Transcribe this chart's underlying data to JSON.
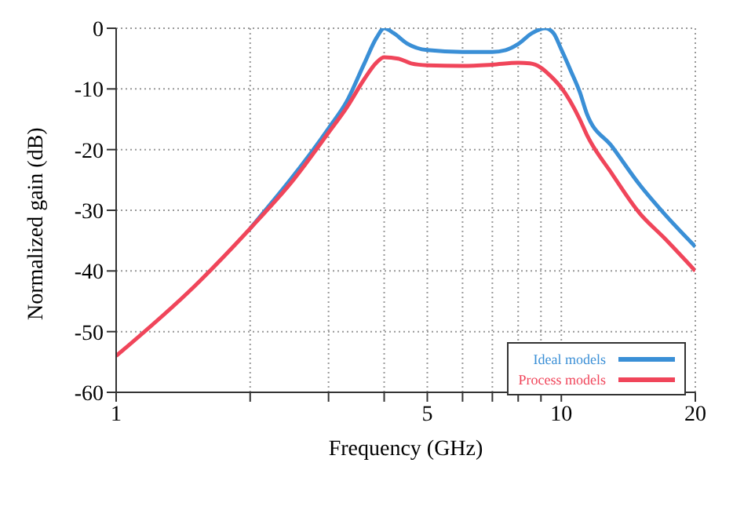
{
  "chart_data": {
    "type": "line",
    "xlabel": "Frequency (GHz)",
    "ylabel": "Normalized gain (dB)",
    "log": "x",
    "xlim": [
      1,
      20
    ],
    "ylim": [
      -60,
      0
    ],
    "xticks": [
      1,
      {
        "value": 2,
        "label": null
      },
      {
        "value": 3,
        "label": null
      },
      {
        "value": 4,
        "label": null
      },
      5,
      {
        "value": 6,
        "label": null
      },
      {
        "value": 7,
        "label": null
      },
      {
        "value": 8,
        "label": null
      },
      {
        "value": 9,
        "label": null
      },
      10,
      20
    ],
    "yticks": [
      -60,
      -50,
      -40,
      -30,
      -20,
      -10,
      0
    ],
    "grid": true,
    "legend": "bottom right",
    "marker": "none",
    "line_style": "solid",
    "series": [
      {
        "name": "Ideal models",
        "color": "#3a8fd6",
        "x": [
          2,
          3,
          3.3,
          3.6,
          3.85,
          4,
          4.2,
          4.5,
          5,
          6,
          7,
          7.5,
          8,
          8.6,
          9.2,
          9.6,
          10,
          10.5,
          11,
          11.4,
          13,
          15,
          17,
          20
        ],
        "values": [
          -33,
          -16.5,
          -12,
          -6,
          -1.5,
          0,
          -0.8,
          -2.5,
          -3.6,
          -3.9,
          -3.9,
          -3.6,
          -2.6,
          -0.8,
          0,
          -0.8,
          -3.5,
          -7,
          -10.5,
          -14,
          -19.5,
          -25.8,
          -30.5,
          -36
        ]
      },
      {
        "name": "Process models",
        "color": "#f0455a",
        "x": [
          1,
          1.5,
          2,
          2.5,
          3,
          3.3,
          3.6,
          3.85,
          4,
          4.3,
          4.6,
          5,
          6,
          7,
          8,
          8.5,
          9,
          9.5,
          10,
          11,
          11.4,
          13,
          15,
          17,
          20
        ],
        "values": [
          -54,
          -42.5,
          -33,
          -25,
          -17.2,
          -13,
          -8.5,
          -5.6,
          -4.8,
          -5,
          -5.8,
          -6.1,
          -6.2,
          -6,
          -5.7,
          -5.8,
          -6.5,
          -8,
          -9.8,
          -15,
          -17.5,
          -24,
          -30.5,
          -34.5,
          -40
        ]
      }
    ]
  }
}
